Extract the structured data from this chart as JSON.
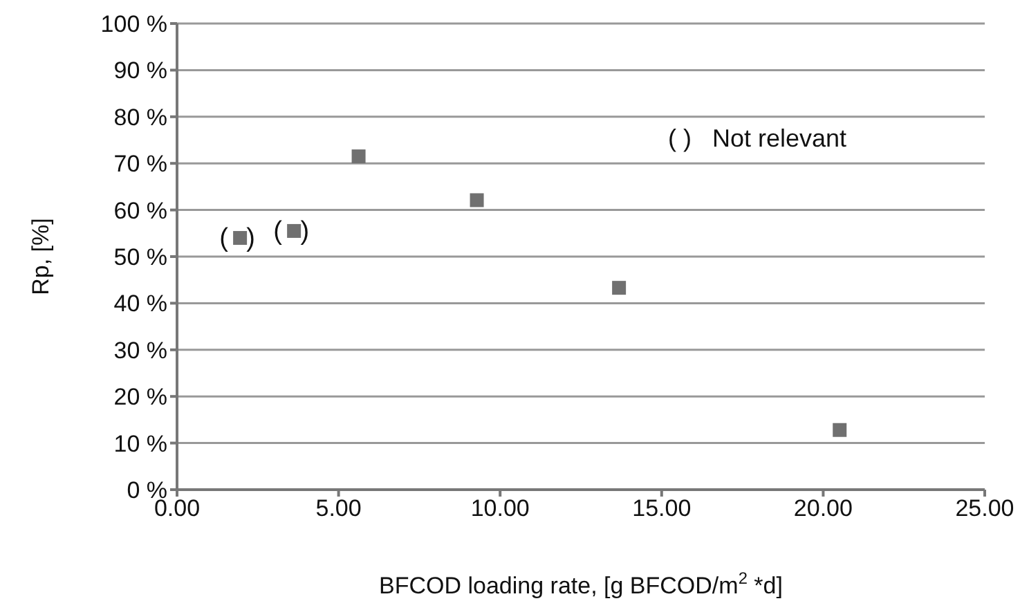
{
  "chart_data": {
    "type": "scatter",
    "xlabel": "BFCOD loading rate, [g BFCOD/m$^{2}$ *d]",
    "ylabel": "Rp, [%]",
    "x": [
      1.95,
      3.62,
      5.62,
      9.28,
      13.68,
      20.51
    ],
    "series": [
      {
        "color": "#707070",
        "values": [
          54,
          55.5,
          71.5,
          62.1,
          43.3,
          12.8
        ]
      }
    ],
    "marker": "square",
    "grid": "y",
    "legend": false,
    "xlim": [
      0,
      25
    ],
    "xticks": [
      {
        "value": 0,
        "label": "0.00"
      },
      {
        "value": 5,
        "label": "5.00"
      },
      {
        "value": 10,
        "label": "10.00"
      },
      {
        "value": 15,
        "label": "15.00"
      },
      {
        "value": 20,
        "label": "20.00"
      },
      {
        "value": 25,
        "label": "25.00"
      }
    ],
    "ylim": [
      0,
      100
    ],
    "yticks": [
      {
        "value": 0,
        "label": "0 %"
      },
      {
        "value": 10,
        "label": "10 %"
      },
      {
        "value": 20,
        "label": "20 %"
      },
      {
        "value": 30,
        "label": "30 %"
      },
      {
        "value": 40,
        "label": "40 %"
      },
      {
        "value": 50,
        "label": "50 %"
      },
      {
        "value": 60,
        "label": "60 %"
      },
      {
        "value": 70,
        "label": "70 %"
      },
      {
        "value": 80,
        "label": "80 %"
      },
      {
        "value": 90,
        "label": "90 %"
      },
      {
        "value": 100,
        "label": "100 %"
      }
    ],
    "annotations": [
      {
        "text": "( )",
        "x": 1.95,
        "y": 54
      },
      {
        "text": "( )",
        "x": 3.62,
        "y": 55.5
      },
      "( )   Not relevant"
    ]
  }
}
